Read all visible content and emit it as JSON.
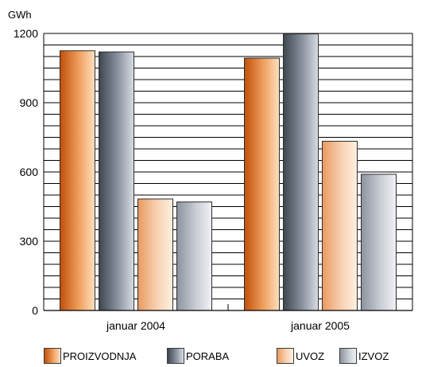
{
  "chart_data": {
    "type": "bar",
    "unit_label": "GWh",
    "categories": [
      "januar 2004",
      "januar 2005"
    ],
    "series": [
      {
        "name": "PROIZVODNJA",
        "values": [
          1125,
          1093
        ],
        "colors": [
          "#c0500a",
          "#f0a060",
          "#fde0c0"
        ]
      },
      {
        "name": "PORABA",
        "values": [
          1120,
          1198
        ],
        "colors": [
          "#3e4650",
          "#8a93a0",
          "#d9dde3"
        ]
      },
      {
        "name": "UVOZ",
        "values": [
          483,
          733
        ],
        "colors": [
          "#e99a60",
          "#f8d2b2",
          "#fff0e2"
        ]
      },
      {
        "name": "IZVOZ",
        "values": [
          470,
          590
        ],
        "colors": [
          "#8c939d",
          "#c9cdd4",
          "#f0f2f4"
        ]
      }
    ],
    "y_ticks": [
      0,
      300,
      600,
      900,
      1200
    ],
    "ylim": [
      0,
      1200
    ],
    "grid": true,
    "legend_position": "bottom"
  }
}
